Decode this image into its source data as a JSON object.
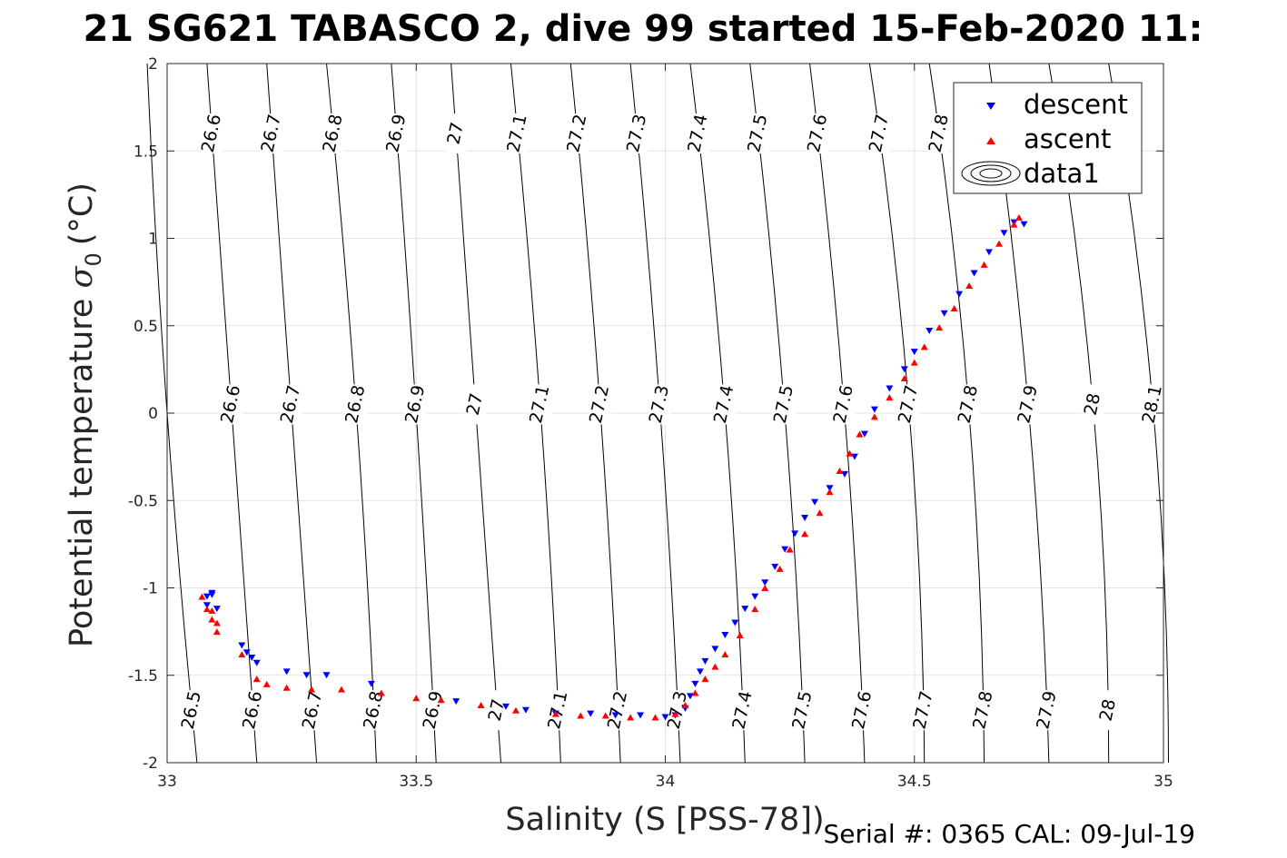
{
  "chart_data": {
    "type": "scatter",
    "title": "21 SG621 TABASCO 2, dive 99 started 15-Feb-2020 11:",
    "xlabel": "Salinity (S [PSS-78])",
    "ylabel": "Potential temperature σ0 (°C)",
    "ylabel_main": "Potential temperature",
    "ylabel_sym": "σ",
    "ylabel_sub": "0",
    "ylabel_unit": "(°C)",
    "footer": "Serial #: 0365  CAL: 09-Jul-19",
    "xlim": [
      33,
      35
    ],
    "ylim": [
      -2,
      2
    ],
    "x_ticks": [
      "33",
      "33.5",
      "34",
      "34.5",
      "35"
    ],
    "y_ticks": [
      "2",
      "1.5",
      "1",
      "0.5",
      "0",
      "-0.5",
      "-1",
      "-1.5",
      "-2"
    ],
    "grid": true,
    "legend": {
      "placement": "top-right",
      "entries": [
        "descent",
        "ascent",
        "data1"
      ]
    },
    "colors": {
      "descent": "#0000ff",
      "ascent": "#ff0000",
      "contour": "#000000",
      "grid": "#e3e3e3"
    },
    "density_contours": {
      "levels": [
        26.5,
        26.6,
        26.7,
        26.8,
        26.9,
        27,
        27.1,
        27.2,
        27.3,
        27.4,
        27.5,
        27.6,
        27.7,
        27.8,
        27.9,
        28,
        28.1
      ],
      "level_labels": [
        "26.5",
        "26.6",
        "26.7",
        "26.8",
        "26.9",
        "27",
        "27.1",
        "27.2",
        "27.3",
        "27.4",
        "27.5",
        "27.6",
        "27.7",
        "27.8",
        "27.9",
        "28",
        "28.1"
      ],
      "salinity_at_theta_2": [
        32.96,
        33.08,
        33.2,
        33.32,
        33.45,
        33.57,
        33.69,
        33.81,
        33.93,
        34.05,
        34.17,
        34.29,
        34.41,
        34.53,
        34.65,
        34.77,
        34.89
      ],
      "salinity_at_theta_0": [
        33.0,
        33.13,
        33.25,
        33.38,
        33.5,
        33.62,
        33.75,
        33.87,
        33.99,
        34.12,
        34.24,
        34.36,
        34.49,
        34.61,
        34.73,
        34.86,
        34.98
      ],
      "salinity_at_theta_minus_2": [
        33.06,
        33.18,
        33.3,
        33.42,
        33.54,
        33.67,
        33.79,
        33.91,
        34.03,
        34.16,
        34.28,
        34.4,
        34.52,
        34.64,
        34.77,
        34.89,
        35.01
      ]
    },
    "series": [
      {
        "name": "descent",
        "marker": "triangle-down",
        "x": [
          33.09,
          33.09,
          33.08,
          33.08,
          33.1,
          33.15,
          33.16,
          33.17,
          33.18,
          33.24,
          33.28,
          33.32,
          33.41,
          33.58,
          33.68,
          33.72,
          33.78,
          33.85,
          33.9,
          33.95,
          34.0,
          34.02,
          34.04,
          34.05,
          34.06,
          34.07,
          34.08,
          34.1,
          34.12,
          34.14,
          34.16,
          34.18,
          34.2,
          34.22,
          34.24,
          34.26,
          34.28,
          34.3,
          34.33,
          34.36,
          34.38,
          34.4,
          34.42,
          34.45,
          34.48,
          34.5,
          34.53,
          34.56,
          34.59,
          34.62,
          34.65,
          34.68,
          34.7,
          34.72
        ],
        "y": [
          -1.03,
          -1.04,
          -1.05,
          -1.1,
          -1.12,
          -1.33,
          -1.37,
          -1.4,
          -1.43,
          -1.48,
          -1.5,
          -1.5,
          -1.55,
          -1.65,
          -1.68,
          -1.7,
          -1.72,
          -1.72,
          -1.73,
          -1.73,
          -1.74,
          -1.73,
          -1.69,
          -1.62,
          -1.55,
          -1.48,
          -1.42,
          -1.35,
          -1.27,
          -1.2,
          -1.12,
          -1.05,
          -0.97,
          -0.88,
          -0.78,
          -0.69,
          -0.6,
          -0.51,
          -0.43,
          -0.35,
          -0.25,
          -0.12,
          0.02,
          0.14,
          0.25,
          0.35,
          0.47,
          0.57,
          0.68,
          0.8,
          0.92,
          1.03,
          1.09,
          1.08
        ]
      },
      {
        "name": "ascent",
        "marker": "triangle-up",
        "x": [
          33.07,
          33.08,
          33.09,
          33.1,
          33.1,
          33.09,
          33.15,
          33.18,
          33.2,
          33.24,
          33.29,
          33.35,
          33.43,
          33.5,
          33.55,
          33.63,
          33.7,
          33.78,
          33.83,
          33.88,
          33.93,
          33.98,
          34.02,
          34.04,
          34.06,
          34.08,
          34.1,
          34.12,
          34.15,
          34.18,
          34.2,
          34.23,
          34.25,
          34.28,
          34.31,
          34.33,
          34.35,
          34.37,
          34.39,
          34.42,
          34.45,
          34.48,
          34.5,
          34.52,
          34.55,
          34.58,
          34.61,
          34.64,
          34.67,
          34.7,
          34.71
        ],
        "y": [
          -1.05,
          -1.12,
          -1.18,
          -1.25,
          -1.2,
          -1.13,
          -1.38,
          -1.52,
          -1.55,
          -1.57,
          -1.58,
          -1.58,
          -1.6,
          -1.63,
          -1.64,
          -1.67,
          -1.7,
          -1.72,
          -1.73,
          -1.73,
          -1.74,
          -1.74,
          -1.72,
          -1.67,
          -1.6,
          -1.52,
          -1.45,
          -1.38,
          -1.27,
          -1.12,
          -1.0,
          -0.89,
          -0.78,
          -0.69,
          -0.57,
          -0.45,
          -0.33,
          -0.23,
          -0.12,
          -0.02,
          0.09,
          0.2,
          0.29,
          0.38,
          0.49,
          0.6,
          0.73,
          0.85,
          0.97,
          1.08,
          1.12
        ]
      }
    ]
  }
}
